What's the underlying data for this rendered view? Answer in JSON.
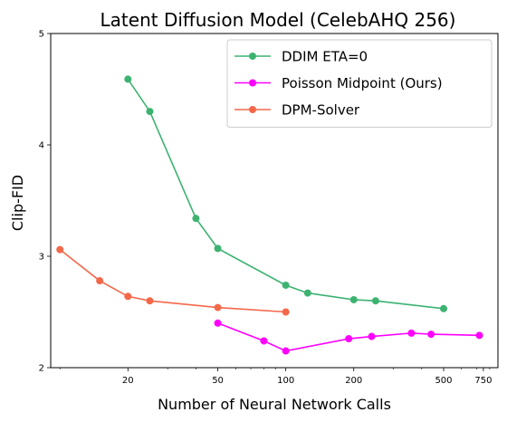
{
  "chart_data": {
    "type": "line",
    "title": "Latent Diffusion Model (CelebAHQ 256)",
    "xlabel": "Number of Neural Network Calls",
    "ylabel": "Clip-FID",
    "xscale": "log",
    "xlim": [
      9.1,
      870
    ],
    "ylim": [
      2,
      5
    ],
    "xticks": [
      {
        "value": 20,
        "label": "20"
      },
      {
        "value": 50,
        "label": "50"
      },
      {
        "value": 100,
        "label": "100"
      },
      {
        "value": 200,
        "label": "200"
      },
      {
        "value": 500,
        "label": "500"
      },
      {
        "value": 750,
        "label": "750"
      }
    ],
    "yticks": [
      {
        "value": 2,
        "label": "2"
      },
      {
        "value": 3,
        "label": "3"
      },
      {
        "value": 4,
        "label": "4"
      },
      {
        "value": 5,
        "label": "5"
      }
    ],
    "grid": false,
    "legend_position": "top-right",
    "series": [
      {
        "name": "DDIM ETA=0",
        "color": "#3cb371",
        "x": [
          20,
          25,
          40,
          50,
          100,
          125,
          200,
          250,
          500
        ],
        "y": [
          4.59,
          4.3,
          3.34,
          3.07,
          2.74,
          2.67,
          2.61,
          2.6,
          2.53
        ]
      },
      {
        "name": "Poisson Midpoint (Ours)",
        "color": "#ff00ff",
        "x": [
          50,
          80,
          100,
          190,
          240,
          360,
          440,
          720
        ],
        "y": [
          2.4,
          2.24,
          2.15,
          2.26,
          2.28,
          2.31,
          2.3,
          2.29
        ]
      },
      {
        "name": "DPM-Solver",
        "color": "#f4684a",
        "x": [
          10,
          15,
          20,
          25,
          50,
          100
        ],
        "y": [
          3.06,
          2.78,
          2.64,
          2.6,
          2.54,
          2.5
        ]
      }
    ]
  }
}
